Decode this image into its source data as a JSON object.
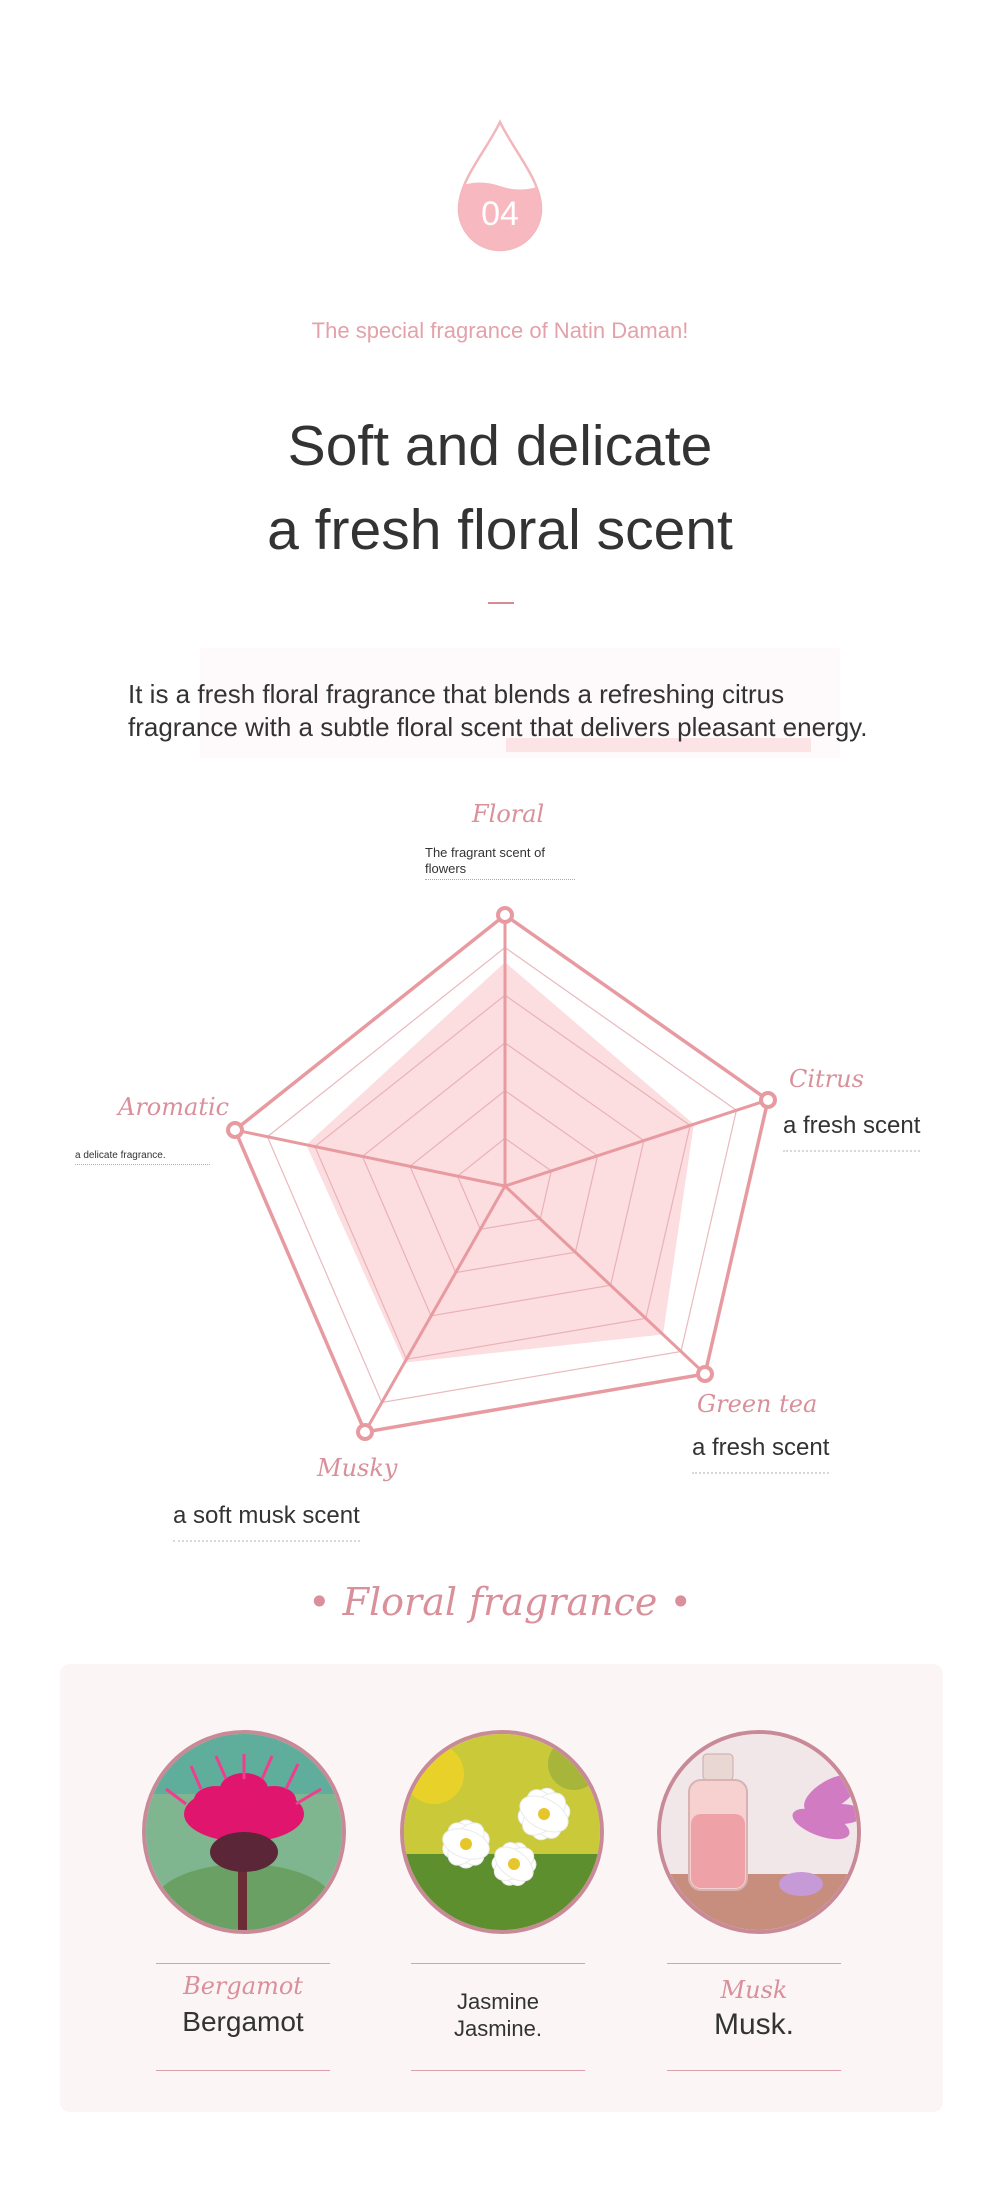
{
  "badge": {
    "number": "04"
  },
  "tagline": "The special fragrance of Natin Daman!",
  "title": {
    "line1": "Soft and delicate",
    "line2": "a fresh floral scent"
  },
  "description": {
    "line1": "It is a fresh floral fragrance that blends a refreshing citrus",
    "line2": "fragrance with a subtle floral scent that delivers pleasant energy."
  },
  "radar": {
    "axes": [
      {
        "key": "floral",
        "label": "Floral",
        "desc": "The fragrant scent of flowers"
      },
      {
        "key": "citrus",
        "label": "Citrus",
        "desc": "a fresh scent"
      },
      {
        "key": "green_tea",
        "label": "Green tea",
        "desc": "a fresh scent"
      },
      {
        "key": "musky",
        "label": "Musky",
        "desc": "a soft musk scent"
      },
      {
        "key": "aromatic",
        "label": "Aromatic",
        "desc": "a delicate fragrance."
      }
    ],
    "levels": 5,
    "values": [
      0.92,
      0.8,
      0.88,
      0.8,
      0.82
    ],
    "colors": {
      "fill": "#fcdde0",
      "stroke": "#e89aa1",
      "grid": "#e3a7ad"
    }
  },
  "section_title": "• Floral fragrance •",
  "ingredients": [
    {
      "script": "Bergamot",
      "name": "Bergamot",
      "icon": "bergamot-flower-photo"
    },
    {
      "script": "",
      "name": "Jasmine\nJasmine.",
      "line1": "Jasmine",
      "line2": "Jasmine.",
      "icon": "jasmine-flower-photo"
    },
    {
      "script": "Musk",
      "name": "Musk.",
      "icon": "musk-bottle-photo"
    }
  ]
}
